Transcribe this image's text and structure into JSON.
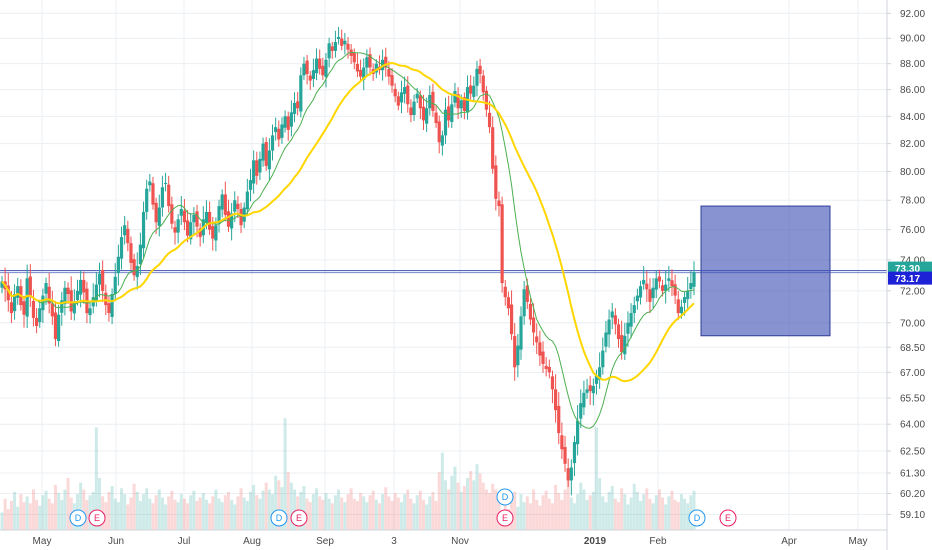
{
  "chart_data": {
    "type": "candlestick",
    "title": "",
    "y_axis": {
      "ticks": [
        "59.10",
        "60.20",
        "61.30",
        "62.50",
        "64.00",
        "65.50",
        "67.00",
        "68.50",
        "70.00",
        "72.00",
        "74.00",
        "76.00",
        "78.00",
        "80.00",
        "82.00",
        "84.00",
        "86.00",
        "88.00",
        "90.00",
        "92.00"
      ],
      "scale": "log",
      "range": [
        58.6,
        92.6
      ]
    },
    "x_axis": {
      "labels": [
        {
          "text": "May",
          "bold": false
        },
        {
          "text": "Jun",
          "bold": false
        },
        {
          "text": "Jul",
          "bold": false
        },
        {
          "text": "Aug",
          "bold": false
        },
        {
          "text": "Sep",
          "bold": false
        },
        {
          "text": "3",
          "bold": false
        },
        {
          "text": "Nov",
          "bold": false
        },
        {
          "text": "2019",
          "bold": true
        },
        {
          "text": "Feb",
          "bold": false
        },
        {
          "text": "Apr",
          "bold": false
        },
        {
          "text": "May",
          "bold": false
        }
      ]
    },
    "price_labels": [
      {
        "value": "73.30",
        "color": "#26a69a"
      },
      {
        "value": "73.17",
        "color": "#1e22d6"
      }
    ],
    "target_box": {
      "from": 69.2,
      "to": 77.6
    },
    "close_path": [
      72.6,
      72.1,
      71.4,
      70.6,
      71.8,
      72.3,
      71.1,
      70.5,
      72.8,
      71.6,
      70.3,
      69.8,
      70.9,
      71.7,
      72.5,
      71.2,
      70.4,
      69.0,
      70.5,
      71.4,
      72.2,
      71.8,
      70.7,
      71.3,
      72.0,
      72.7,
      71.9,
      70.6,
      70.9,
      71.6,
      72.4,
      73.1,
      72.0,
      71.1,
      70.6,
      71.8,
      72.9,
      74.2,
      75.5,
      76.3,
      75.1,
      73.8,
      73.0,
      73.6,
      75.0,
      77.2,
      78.8,
      79.3,
      77.7,
      76.5,
      77.5,
      78.9,
      79.2,
      77.6,
      76.4,
      75.8,
      76.7,
      77.4,
      76.5,
      75.6,
      76.5,
      77.0,
      76.2,
      75.5,
      76.7,
      77.2,
      76.0,
      75.4,
      76.3,
      77.6,
      78.4,
      77.0,
      76.2,
      77.1,
      78.0,
      77.4,
      76.3,
      77.5,
      78.6,
      79.4,
      80.8,
      79.7,
      80.9,
      82.0,
      80.4,
      81.5,
      82.6,
      83.2,
      82.3,
      83.4,
      84.0,
      83.0,
      84.3,
      85.0,
      84.6,
      87.1,
      88.0,
      87.2,
      86.7,
      87.5,
      88.4,
      87.6,
      87.1,
      88.3,
      89.6,
      89.0,
      89.7,
      90.1,
      89.4,
      89.8,
      89.1,
      88.6,
      88.1,
      87.4,
      87.0,
      87.7,
      88.5,
      87.7,
      87.2,
      88.0,
      87.5,
      88.3,
      87.7,
      87.0,
      86.3,
      85.5,
      84.8,
      85.8,
      86.2,
      84.9,
      84.1,
      85.1,
      85.7,
      84.6,
      83.7,
      84.6,
      85.6,
      84.4,
      83.5,
      82.1,
      82.6,
      84.5,
      83.7,
      84.9,
      85.9,
      84.6,
      85.2,
      84.4,
      86.2,
      85.7,
      86.3,
      87.6,
      87.2,
      85.8,
      84.5,
      83.2,
      80.2,
      78.1,
      77.6
    ],
    "recovery_path": [
      72.5,
      71.6,
      70.9,
      69.3,
      67.3,
      68.6,
      70.4,
      72.1,
      71.3,
      70.2,
      69.4,
      68.8,
      68.0,
      67.5,
      67.2,
      67.0,
      66.0,
      64.8,
      63.5,
      62.6,
      61.8,
      60.9,
      61.6,
      63.0,
      64.2,
      65.2,
      65.8,
      66.0,
      65.9,
      66.2,
      66.8,
      67.3,
      68.3,
      69.4,
      70.2,
      70.7,
      69.9,
      69.0,
      68.2,
      69.2,
      70.0,
      70.6,
      71.1,
      71.7,
      72.3,
      72.7,
      72.1,
      71.3,
      72.2,
      72.8,
      72.6,
      72.0,
      72.4,
      72.8,
      72.3,
      71.7,
      70.6,
      71.0,
      71.6,
      72.0,
      72.5,
      73.2
    ],
    "volume_profile": [
      0.1,
      0.22,
      0.13,
      0.2,
      0.28,
      0.15,
      0.26,
      0.19,
      0.24,
      0.18,
      0.3,
      0.21,
      0.16,
      0.25,
      0.29,
      0.22,
      0.18,
      0.34,
      0.27,
      0.21,
      0.3,
      0.4,
      0.23,
      0.18,
      0.26,
      0.36,
      0.3,
      0.21,
      0.25,
      0.28,
      0.84,
      0.4,
      0.24,
      0.19,
      0.28,
      0.33,
      0.22,
      0.19,
      0.31,
      0.26,
      0.17,
      0.23,
      0.35,
      0.28,
      0.2,
      0.26,
      0.31,
      0.22,
      0.18,
      0.25,
      0.3,
      0.23,
      0.17,
      0.24,
      0.29,
      0.21,
      0.19,
      0.26,
      0.22,
      0.18,
      0.25,
      0.29,
      0.2,
      0.23,
      0.27,
      0.21,
      0.18,
      0.24,
      0.3,
      0.22,
      0.19,
      0.25,
      0.28,
      0.21,
      0.17,
      0.24,
      0.31,
      0.23,
      0.2,
      0.28,
      0.34,
      0.25,
      0.22,
      0.29,
      0.36,
      0.3,
      0.26,
      0.42,
      0.38,
      0.32,
      0.92,
      0.45,
      0.36,
      0.3,
      0.24,
      0.28,
      0.33,
      0.22,
      0.19,
      0.26,
      0.31,
      0.24,
      0.21,
      0.27,
      0.22,
      0.18,
      0.25,
      0.3,
      0.23,
      0.19,
      0.26,
      0.31,
      0.22,
      0.2,
      0.27,
      0.24,
      0.19,
      0.25,
      0.29,
      0.21,
      0.18,
      0.26,
      0.32,
      0.24,
      0.2,
      0.27,
      0.23,
      0.19,
      0.26,
      0.3,
      0.22,
      0.18,
      0.25,
      0.29,
      0.21,
      0.17,
      0.24,
      0.28,
      0.2,
      0.45,
      0.62,
      0.38,
      0.3,
      0.42,
      0.5,
      0.36,
      0.28,
      0.33,
      0.4,
      0.46,
      0.38,
      0.52,
      0.44,
      0.36,
      0.3,
      0.27,
      0.35,
      0.3,
      0.25
    ],
    "events": [
      {
        "text": "D",
        "color": "#2196f3"
      },
      {
        "text": "E",
        "color": "#e91e63"
      },
      {
        "text": "D",
        "color": "#2196f3"
      },
      {
        "text": "E",
        "color": "#e91e63"
      },
      {
        "text": "D",
        "color": "#2196f3"
      },
      {
        "text": "E",
        "color": "#e91e63"
      },
      {
        "text": "D",
        "color": "#2196f3"
      },
      {
        "text": "E",
        "color": "#e91e63"
      }
    ],
    "colors": {
      "up": "#26a69a",
      "down": "#ef5350",
      "ma_fast": "#4caf50",
      "ma_slow": "#ffd600",
      "hline": "#3f51b5",
      "box_fill": "#3f51b5",
      "grid": "#eceff3",
      "axis": "#cfd3da"
    }
  }
}
